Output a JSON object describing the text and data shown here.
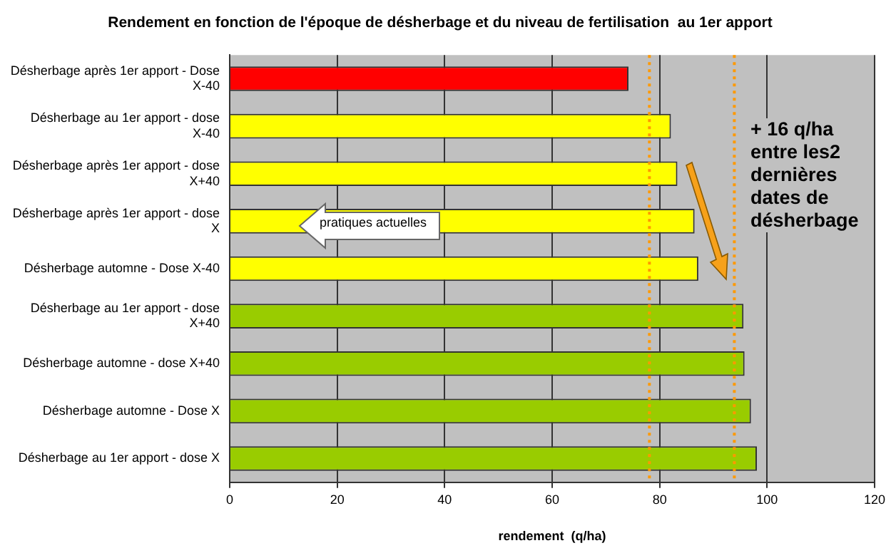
{
  "chart_data": {
    "type": "bar",
    "orientation": "horizontal",
    "title": "Rendement en fonction de l'époque de désherbage et du niveau de fertilisation  au 1er apport",
    "xlabel": "rendement  (q/ha)",
    "categories": [
      "Désherbage après 1er apport - Dose X-40",
      "Désherbage au 1er apport - dose X-40",
      "Désherbage après 1er apport - dose X+40",
      "Désherbage après 1er apport - dose X",
      "Désherbage automne - Dose X-40",
      "Désherbage au 1er apport - dose X+40",
      "Désherbage automne - dose X+40",
      "Désherbage automne - Dose X",
      "Désherbage au 1er apport - dose X"
    ],
    "values": [
      74.2,
      82.1,
      83.3,
      86.5,
      87.2,
      95.6,
      95.8,
      97.0,
      98.1
    ],
    "colors": [
      "#ff0000",
      "#ffff00",
      "#ffff00",
      "#ffff00",
      "#ffff00",
      "#99cc00",
      "#99cc00",
      "#99cc00",
      "#99cc00"
    ],
    "xlim": [
      0,
      120
    ],
    "xticks": [
      0,
      20,
      40,
      60,
      80,
      100,
      120
    ],
    "grid": "x",
    "legend": false,
    "ref_lines": [
      {
        "axis": "x",
        "value": 78.1,
        "color": "#ff9900",
        "line_style": "dotted"
      },
      {
        "axis": "x",
        "value": 93.9,
        "color": "#ff9900",
        "line_style": "dotted"
      }
    ],
    "annotations": [
      "pratiques actuelles",
      "+ 16 q/ha entre les2 dernières dates de désherbage"
    ]
  }
}
